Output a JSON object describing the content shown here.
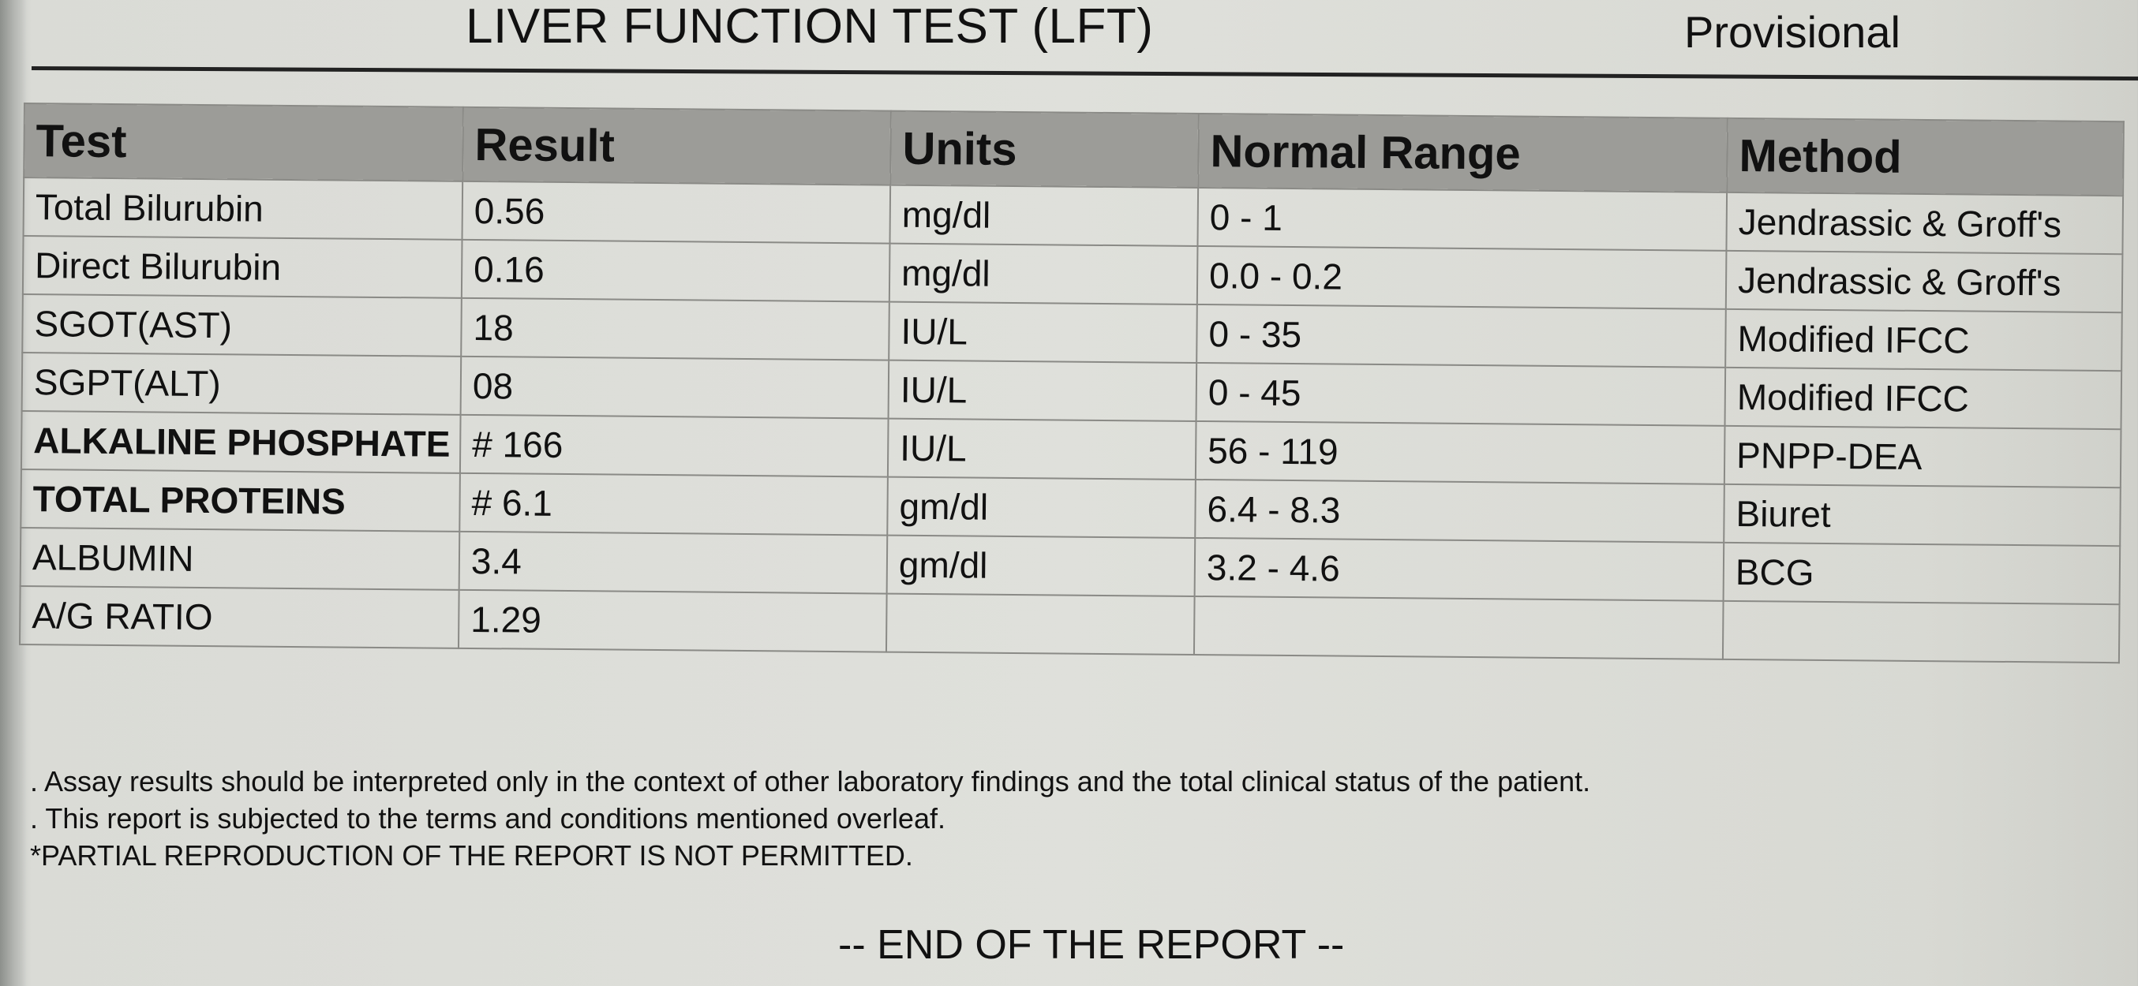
{
  "report": {
    "title": "LIVER FUNCTION TEST (LFT)",
    "status": "Provisional"
  },
  "table": {
    "headers": {
      "test": "Test",
      "result": "Result",
      "units": "Units",
      "range": "Normal Range",
      "method": "Method"
    },
    "rows": [
      {
        "test": "Total Bilurubin",
        "result": "0.56",
        "units": "mg/dl",
        "range": "0 - 1",
        "method": "Jendrassic & Groff's"
      },
      {
        "test": "Direct Bilurubin",
        "result": "0.16",
        "units": "mg/dl",
        "range": "0.0 - 0.2",
        "method": "Jendrassic & Groff's"
      },
      {
        "test": "SGOT(AST)",
        "result": "18",
        "units": "IU/L",
        "range": "0 - 35",
        "method": "Modified IFCC"
      },
      {
        "test": "SGPT(ALT)",
        "result": "08",
        "units": "IU/L",
        "range": "0 - 45",
        "method": "Modified IFCC"
      },
      {
        "test": "ALKALINE PHOSPHATE",
        "result": "# 166",
        "units": "IU/L",
        "range": "56 - 119",
        "method": "PNPP-DEA"
      },
      {
        "test": "TOTAL PROTEINS",
        "result": "# 6.1",
        "units": "gm/dl",
        "range": "6.4 - 8.3",
        "method": "Biuret"
      },
      {
        "test": "ALBUMIN",
        "result": "3.4",
        "units": "gm/dl",
        "range": "3.2 - 4.6",
        "method": "BCG"
      },
      {
        "test": "A/G RATIO",
        "result": "1.29",
        "units": "",
        "range": "",
        "method": ""
      }
    ]
  },
  "notes": [
    ". Assay results should be interpreted only in the context of other laboratory findings and the total clinical status of the patient.",
    ". This report is subjected to the terms and conditions mentioned overleaf.",
    "*PARTIAL REPRODUCTION OF THE REPORT IS NOT PERMITTED."
  ],
  "footer": "-- END OF THE REPORT --"
}
